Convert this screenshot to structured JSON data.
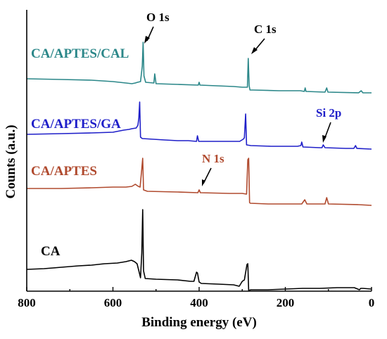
{
  "chart_data": {
    "type": "line",
    "xlabel": "Binding energy (eV)",
    "ylabel": "Counts (a.u.)",
    "xlim": [
      800,
      0
    ],
    "x_reversed": true,
    "xticks": [
      "800",
      "600",
      "400",
      "200",
      "0"
    ],
    "xtick_values": [
      800,
      600,
      400,
      200,
      0
    ],
    "yticks_shown": false,
    "grid": false,
    "legend": "none",
    "series": [
      {
        "name": "CA/APTES/CAL",
        "color": "#2b8789",
        "baseline": 112,
        "points": [
          [
            800,
            112
          ],
          [
            720,
            113
          ],
          [
            650,
            114
          ],
          [
            600,
            116
          ],
          [
            570,
            118
          ],
          [
            556,
            119
          ],
          [
            548,
            118
          ],
          [
            543,
            117
          ],
          [
            536,
            116
          ],
          [
            532,
            94
          ],
          [
            530,
            60
          ],
          [
            528,
            108
          ],
          [
            524,
            117
          ],
          [
            505,
            118
          ],
          [
            503,
            105
          ],
          [
            500,
            119
          ],
          [
            450,
            120
          ],
          [
            402,
            121
          ],
          [
            400,
            117
          ],
          [
            398,
            121
          ],
          [
            320,
            123
          ],
          [
            300,
            124
          ],
          [
            288,
            124
          ],
          [
            286,
            83
          ],
          [
            284,
            122
          ],
          [
            282,
            128
          ],
          [
            275,
            128
          ],
          [
            215,
            129
          ],
          [
            165,
            129
          ],
          [
            156,
            130
          ],
          [
            154,
            125
          ],
          [
            152,
            130
          ],
          [
            108,
            131
          ],
          [
            104,
            125
          ],
          [
            101,
            131
          ],
          [
            30,
            132
          ],
          [
            24,
            129
          ],
          [
            20,
            132
          ],
          [
            0,
            132
          ]
        ]
      },
      {
        "name": "CA/APTES/GA",
        "color": "#1f1fc9",
        "baseline": 191,
        "points": [
          [
            800,
            191
          ],
          [
            720,
            190
          ],
          [
            650,
            189
          ],
          [
            600,
            188
          ],
          [
            575,
            185
          ],
          [
            563,
            184
          ],
          [
            556,
            183
          ],
          [
            546,
            182
          ],
          [
            542,
            178
          ],
          [
            540,
            168
          ],
          [
            538,
            145
          ],
          [
            536,
            195
          ],
          [
            532,
            197
          ],
          [
            480,
            199
          ],
          [
            450,
            200
          ],
          [
            425,
            200
          ],
          [
            406,
            201
          ],
          [
            404,
            193
          ],
          [
            401,
            201
          ],
          [
            325,
            201
          ],
          [
            306,
            201
          ],
          [
            298,
            198
          ],
          [
            295,
            196
          ],
          [
            292,
            162
          ],
          [
            290,
            206
          ],
          [
            280,
            207
          ],
          [
            233,
            208
          ],
          [
            200,
            208
          ],
          [
            172,
            208
          ],
          [
            164,
            207
          ],
          [
            162,
            202
          ],
          [
            159,
            209
          ],
          [
            120,
            210
          ],
          [
            115,
            210
          ],
          [
            112,
            206
          ],
          [
            108,
            210
          ],
          [
            60,
            211
          ],
          [
            41,
            211
          ],
          [
            37,
            207
          ],
          [
            34,
            211
          ],
          [
            0,
            212
          ]
        ]
      },
      {
        "name": "CA/APTES",
        "color": "#b04a2e",
        "baseline": 268,
        "points": [
          [
            800,
            268
          ],
          [
            720,
            268
          ],
          [
            650,
            267
          ],
          [
            600,
            266
          ],
          [
            570,
            266
          ],
          [
            556,
            265
          ],
          [
            548,
            262
          ],
          [
            541,
            265
          ],
          [
            537,
            266
          ],
          [
            533,
            240
          ],
          [
            531,
            225
          ],
          [
            529,
            270
          ],
          [
            520,
            272
          ],
          [
            450,
            273
          ],
          [
            403,
            274
          ],
          [
            400,
            270
          ],
          [
            397,
            274
          ],
          [
            330,
            275
          ],
          [
            300,
            275
          ],
          [
            290,
            276
          ],
          [
            287,
            227
          ],
          [
            285,
            225
          ],
          [
            283,
            288
          ],
          [
            281,
            289
          ],
          [
            240,
            290
          ],
          [
            200,
            290
          ],
          [
            162,
            290
          ],
          [
            155,
            284
          ],
          [
            150,
            290
          ],
          [
            108,
            290
          ],
          [
            104,
            281
          ],
          [
            100,
            290
          ],
          [
            30,
            291
          ],
          [
            0,
            292
          ]
        ]
      },
      {
        "name": "CA",
        "color": "#000000",
        "baseline": 383,
        "points": [
          [
            800,
            383
          ],
          [
            760,
            382
          ],
          [
            720,
            380
          ],
          [
            680,
            378
          ],
          [
            650,
            377
          ],
          [
            620,
            375
          ],
          [
            590,
            374
          ],
          [
            570,
            372
          ],
          [
            557,
            370
          ],
          [
            550,
            372
          ],
          [
            544,
            375
          ],
          [
            540,
            385
          ],
          [
            536,
            395
          ],
          [
            533,
            360
          ],
          [
            531,
            298
          ],
          [
            529,
            385
          ],
          [
            525,
            396
          ],
          [
            500,
            397
          ],
          [
            450,
            398
          ],
          [
            420,
            400
          ],
          [
            412,
            400
          ],
          [
            406,
            387
          ],
          [
            404,
            388
          ],
          [
            400,
            401
          ],
          [
            395,
            403
          ],
          [
            355,
            404
          ],
          [
            320,
            405
          ],
          [
            307,
            407
          ],
          [
            300,
            400
          ],
          [
            295,
            398
          ],
          [
            289,
            376
          ],
          [
            287,
            375
          ],
          [
            285,
            413
          ],
          [
            280,
            412
          ],
          [
            240,
            412
          ],
          [
            200,
            411
          ],
          [
            160,
            410
          ],
          [
            120,
            410
          ],
          [
            80,
            409
          ],
          [
            40,
            409
          ],
          [
            28,
            412
          ],
          [
            25,
            410
          ],
          [
            20,
            410
          ],
          [
            0,
            411
          ]
        ]
      }
    ],
    "annotations": [
      {
        "text": "O 1s",
        "color": "#000000"
      },
      {
        "text": "C 1s",
        "color": "#000000"
      },
      {
        "text": "Si 2p",
        "color": "#1f1fc9"
      },
      {
        "text": "N 1s",
        "color": "#b04a2e"
      }
    ]
  }
}
